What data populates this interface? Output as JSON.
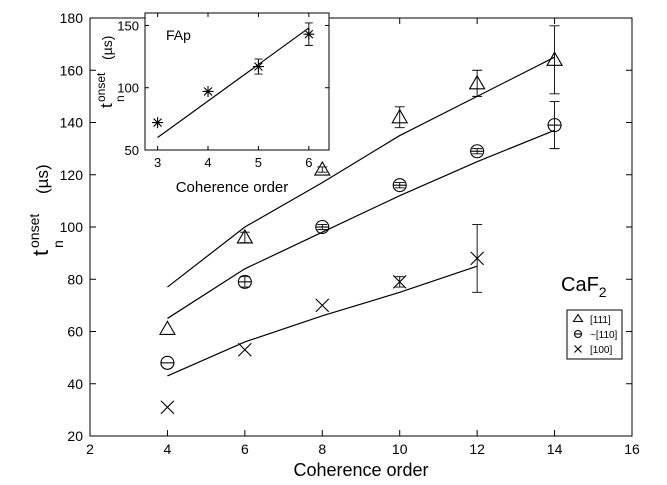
{
  "chart_data": [
    {
      "type": "scatter",
      "title": "",
      "xlabel": "Coherence order",
      "ylabel_main": "t",
      "ylabel_sup": "onset",
      "ylabel_sub": "n",
      "ylabel_unit": "(µs)",
      "xlim": [
        2,
        16
      ],
      "ylim": [
        20,
        180
      ],
      "xticks": [
        "2",
        "4",
        "6",
        "8",
        "10",
        "12",
        "14",
        "16"
      ],
      "yticks": [
        "20",
        "40",
        "60",
        "80",
        "100",
        "120",
        "140",
        "160",
        "180"
      ],
      "annotation": {
        "main": "CaF",
        "sub": "2"
      },
      "legend_position": "right",
      "series": [
        {
          "name": "[111]",
          "marker": "triangle",
          "x": [
            4,
            6,
            8,
            10,
            12,
            14
          ],
          "y": [
            61,
            96,
            122,
            142,
            155,
            164
          ],
          "err": [
            0,
            2,
            1,
            4,
            5,
            13
          ],
          "fit_x": [
            4,
            6,
            8,
            10,
            12,
            14
          ],
          "fit_y": [
            77,
            100,
            117,
            135,
            150,
            165
          ]
        },
        {
          "name": "~[110]",
          "marker": "circle",
          "x": [
            4,
            6,
            8,
            10,
            12,
            14
          ],
          "y": [
            48,
            79,
            100,
            116,
            129,
            139
          ],
          "err": [
            0,
            2,
            1,
            1,
            1,
            9
          ],
          "fit_x": [
            4,
            6,
            8,
            10,
            12,
            14
          ],
          "fit_y": [
            65,
            84,
            98,
            112,
            125,
            137
          ]
        },
        {
          "name": "[100]",
          "marker": "x",
          "x": [
            4,
            6,
            8,
            10,
            12
          ],
          "y": [
            31,
            53,
            70,
            79,
            88
          ],
          "err": [
            0,
            0,
            0,
            2,
            13
          ],
          "fit_x": [
            4,
            6,
            8,
            10,
            12
          ],
          "fit_y": [
            43,
            56,
            66,
            75,
            85
          ]
        }
      ]
    },
    {
      "type": "scatter",
      "title": "FAp",
      "xlabel": "Coherence order",
      "ylabel_main": "t",
      "ylabel_sup": "onset",
      "ylabel_sub": "n",
      "ylabel_unit": "(µs)",
      "xlim": [
        2.75,
        6.4
      ],
      "ylim": [
        50,
        160
      ],
      "xticks": [
        "3",
        "4",
        "5",
        "6"
      ],
      "yticks": [
        "50",
        "100",
        "150"
      ],
      "series": [
        {
          "marker": "asterisk",
          "x": [
            3,
            4,
            5,
            6
          ],
          "y": [
            72,
            97,
            117,
            143
          ],
          "err": [
            0,
            0,
            6,
            9
          ],
          "fit_x": [
            3,
            6
          ],
          "fit_y": [
            60,
            148
          ]
        }
      ]
    }
  ]
}
